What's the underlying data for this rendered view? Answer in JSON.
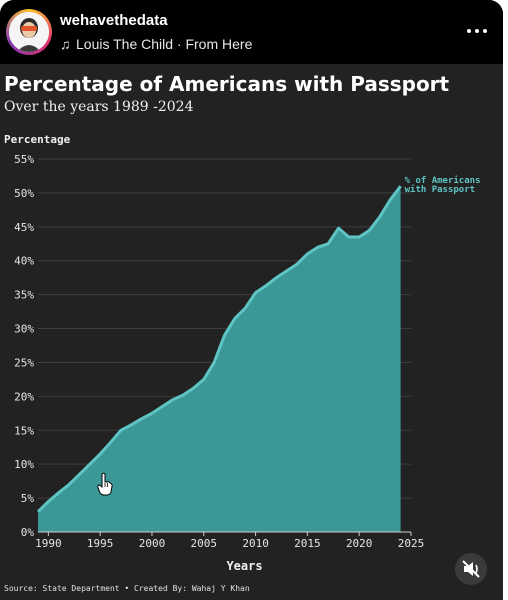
{
  "header": {
    "username": "wehavethedata",
    "music": "Louis The Child · From Here",
    "music_icon": "music-note-icon",
    "more_icon": "more-dots-icon"
  },
  "chart_data": {
    "type": "area",
    "title": "Percentage of Americans with Passport",
    "subtitle": "Over the years 1989 -2024",
    "ylabel": "Percentage",
    "xlabel": "Years",
    "xlim": [
      1989,
      2025
    ],
    "ylim": [
      0,
      55
    ],
    "x_ticks": [
      "1990",
      "1995",
      "2000",
      "2005",
      "2010",
      "2015",
      "2020",
      "2025"
    ],
    "y_ticks": [
      "0%",
      "5%",
      "10%",
      "15%",
      "20%",
      "25%",
      "30%",
      "35%",
      "40%",
      "45%",
      "50%",
      "55%"
    ],
    "grid": true,
    "series": [
      {
        "name": "% of Americans with Passport",
        "color": "#5ec5c4",
        "x": [
          1989,
          1990,
          1991,
          1992,
          1993,
          1994,
          1995,
          1996,
          1997,
          1998,
          1999,
          2000,
          2001,
          2002,
          2003,
          2004,
          2005,
          2006,
          2007,
          2008,
          2009,
          2010,
          2011,
          2012,
          2013,
          2014,
          2015,
          2016,
          2017,
          2018,
          2019,
          2020,
          2021,
          2022,
          2023,
          2024
        ],
        "y": [
          3.0,
          4.5,
          5.8,
          7.0,
          8.5,
          10.0,
          11.5,
          13.2,
          15.0,
          15.8,
          16.7,
          17.5,
          18.5,
          19.5,
          20.2,
          21.2,
          22.5,
          25.0,
          29.0,
          31.5,
          33.0,
          35.3,
          36.3,
          37.5,
          38.5,
          39.5,
          41.0,
          42.0,
          42.5,
          44.8,
          43.5,
          43.5,
          44.5,
          46.5,
          49.0,
          51.0
        ]
      }
    ],
    "annotation": "% of Americans with Passport"
  },
  "footer": {
    "source": "Source: State Department • Created By: Wahaj Y Khan"
  },
  "controls": {
    "mute_icon": "muted-speaker-icon",
    "cursor_icon": "hand-pointer-icon"
  }
}
